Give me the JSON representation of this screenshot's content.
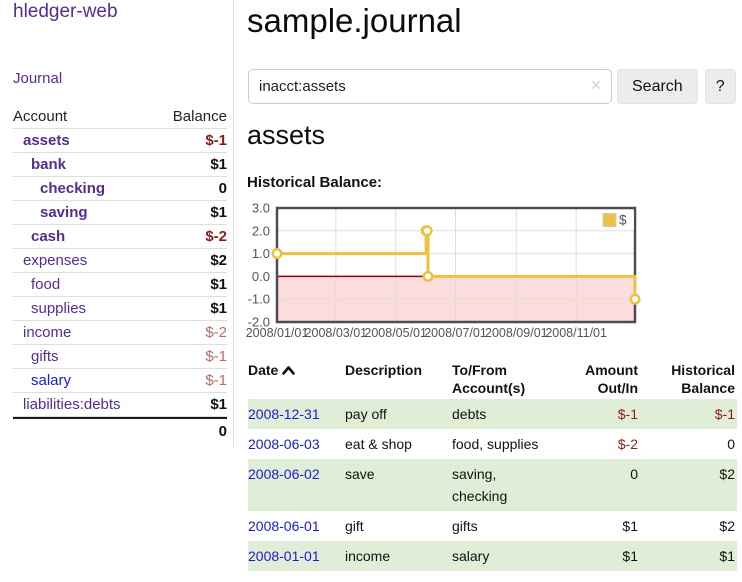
{
  "app": {
    "title": "hledger-web"
  },
  "colors": {
    "link_purple": "#552d90",
    "link_blue": "#1b1bd1",
    "negative_dark_red": "#8e1b1b",
    "negative_light_red": "#bb6a6a",
    "row_green": "#e0eed8",
    "series_yellow": "#edc240"
  },
  "sidebar": {
    "journal_link": "Journal",
    "accounts_table": {
      "headers": [
        "Account",
        "Balance"
      ],
      "rows": [
        {
          "name": "assets",
          "indent": 1,
          "bold": true,
          "balance": "$-1",
          "balance_style": "neg-dark"
        },
        {
          "name": "bank",
          "indent": 2,
          "bold": true,
          "balance": "$1",
          "balance_style": "pos"
        },
        {
          "name": "checking",
          "indent": 3,
          "bold": true,
          "balance": "0",
          "balance_style": "pos"
        },
        {
          "name": "saving",
          "indent": 3,
          "bold": true,
          "balance": "$1",
          "balance_style": "pos"
        },
        {
          "name": "cash",
          "indent": 2,
          "bold": true,
          "balance": "$-2",
          "balance_style": "neg-dark"
        },
        {
          "name": "expenses",
          "indent": 1,
          "bold": false,
          "balance": "$2",
          "balance_style": "pos"
        },
        {
          "name": "food",
          "indent": 2,
          "bold": false,
          "balance": "$1",
          "balance_style": "pos"
        },
        {
          "name": "supplies",
          "indent": 2,
          "bold": false,
          "balance": "$1",
          "balance_style": "pos"
        },
        {
          "name": "income",
          "indent": 1,
          "bold": false,
          "balance": "$-2",
          "balance_style": "neg-light"
        },
        {
          "name": "gifts",
          "indent": 2,
          "bold": false,
          "balance": "$-1",
          "balance_style": "neg-light"
        },
        {
          "name": "salary",
          "indent": 2,
          "bold": false,
          "balance": "$-1",
          "balance_style": "neg-light",
          "link_color": "blue"
        },
        {
          "name": "liabilities:debts",
          "indent": 1,
          "bold": false,
          "balance": "$1",
          "balance_style": "pos"
        }
      ],
      "total": "0"
    }
  },
  "header": {
    "title": "sample.journal"
  },
  "search": {
    "value": "inacct:assets",
    "clear_icon": "✕",
    "button_label": "Search",
    "help_label": "?"
  },
  "account_page": {
    "title": "assets",
    "chart_label": "Historical Balance:"
  },
  "chart_data": {
    "type": "line",
    "step": true,
    "title": "Historical Balance",
    "series": [
      {
        "name": "$",
        "color": "#edc240",
        "points": [
          [
            "2008-01-01",
            1
          ],
          [
            "2008-06-01",
            2
          ],
          [
            "2008-06-02",
            2
          ],
          [
            "2008-06-03",
            0
          ],
          [
            "2008-12-31",
            -1
          ]
        ]
      }
    ],
    "xlim": [
      "2008-01-01",
      "2008-12-31"
    ],
    "ylim": [
      -2,
      3
    ],
    "yticks": [
      "3.0",
      "2.0",
      "1.0",
      "0.0",
      "-1.0",
      "-2.0"
    ],
    "xticks": [
      "2008/01/01",
      "2008/03/01",
      "2008/05/01",
      "2008/07/01",
      "2008/09/01",
      "2008/11/01"
    ],
    "grid": true,
    "negative_region_color": "#fcdcdc",
    "zero_line_color": "#8b0000",
    "legend": {
      "label": "$",
      "swatch_color": "#edc240",
      "position": "top-right"
    }
  },
  "register_table": {
    "columns": [
      {
        "label": "Date",
        "align": "left",
        "sort": "asc",
        "sortable": true
      },
      {
        "label": "Description",
        "align": "left"
      },
      {
        "label": "To/From Account(s)",
        "align": "left"
      },
      {
        "label": "Amount Out/In",
        "align": "right"
      },
      {
        "label": "Historical Balance",
        "align": "right"
      }
    ],
    "rows": [
      {
        "date": "2008-12-31",
        "description": "pay off",
        "accounts": [
          "debts"
        ],
        "amount": "$-1",
        "amount_negative": true,
        "balance": "$-1",
        "balance_negative": true
      },
      {
        "date": "2008-06-03",
        "description": "eat & shop",
        "accounts": [
          "food",
          "supplies"
        ],
        "amount": "$-2",
        "amount_negative": true,
        "balance": "0",
        "balance_negative": false
      },
      {
        "date": "2008-06-02",
        "description": "save",
        "accounts": [
          "saving",
          "checking"
        ],
        "amount": "0",
        "amount_negative": false,
        "balance": "$2",
        "balance_negative": false
      },
      {
        "date": "2008-06-01",
        "description": "gift",
        "accounts": [
          "gifts"
        ],
        "amount": "$1",
        "amount_negative": false,
        "balance": "$2",
        "balance_negative": false
      },
      {
        "date": "2008-01-01",
        "description": "income",
        "accounts": [
          "salary"
        ],
        "amount": "$1",
        "amount_negative": false,
        "balance": "$1",
        "balance_negative": false
      }
    ]
  }
}
